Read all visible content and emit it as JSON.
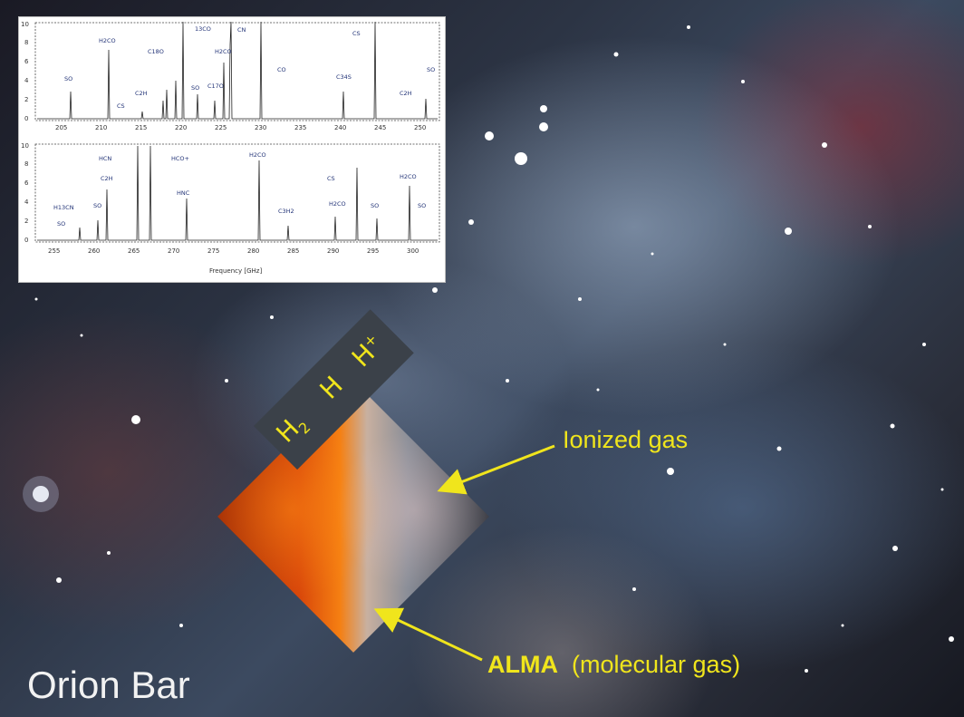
{
  "title": "Orion Bar",
  "zones": {
    "h2": "H",
    "h2_sub": "2",
    "h": "H",
    "hplus": "H",
    "hplus_sup": "+"
  },
  "labels": {
    "ionized": "Ionized gas",
    "alma_bold": "ALMA",
    "alma_rest": "(molecular gas)"
  },
  "spectra": {
    "top": {
      "yticks": [
        "0",
        "2",
        "4",
        "6",
        "8",
        "10"
      ],
      "xticks": [
        "205",
        "210",
        "215",
        "220",
        "225",
        "230",
        "235",
        "240",
        "245",
        "250"
      ],
      "species": [
        "SO",
        "H2CO",
        "CS",
        "C2H",
        "C18O",
        "13CO",
        "SO",
        "C17O",
        "H2CO",
        "CN",
        "CO",
        "C34S",
        "CS",
        "SO",
        "C2H"
      ]
    },
    "bottom": {
      "yticks": [
        "0",
        "2",
        "4",
        "6",
        "8",
        "10"
      ],
      "xticks": [
        "255",
        "260",
        "265",
        "270",
        "275",
        "280",
        "285",
        "290",
        "295",
        "300"
      ],
      "species": [
        "SO",
        "H13CN",
        "SO",
        "C2H",
        "HCN",
        "HCO+",
        "HNC",
        "H2CO",
        "C3H2",
        "H2CO",
        "CS",
        "SO",
        "H2CO",
        "SO"
      ],
      "xlabel": "Frequency [GHz]"
    }
  },
  "colors": {
    "label": "#f0e51c",
    "title": "#f2f2f2",
    "species": "#223377"
  }
}
